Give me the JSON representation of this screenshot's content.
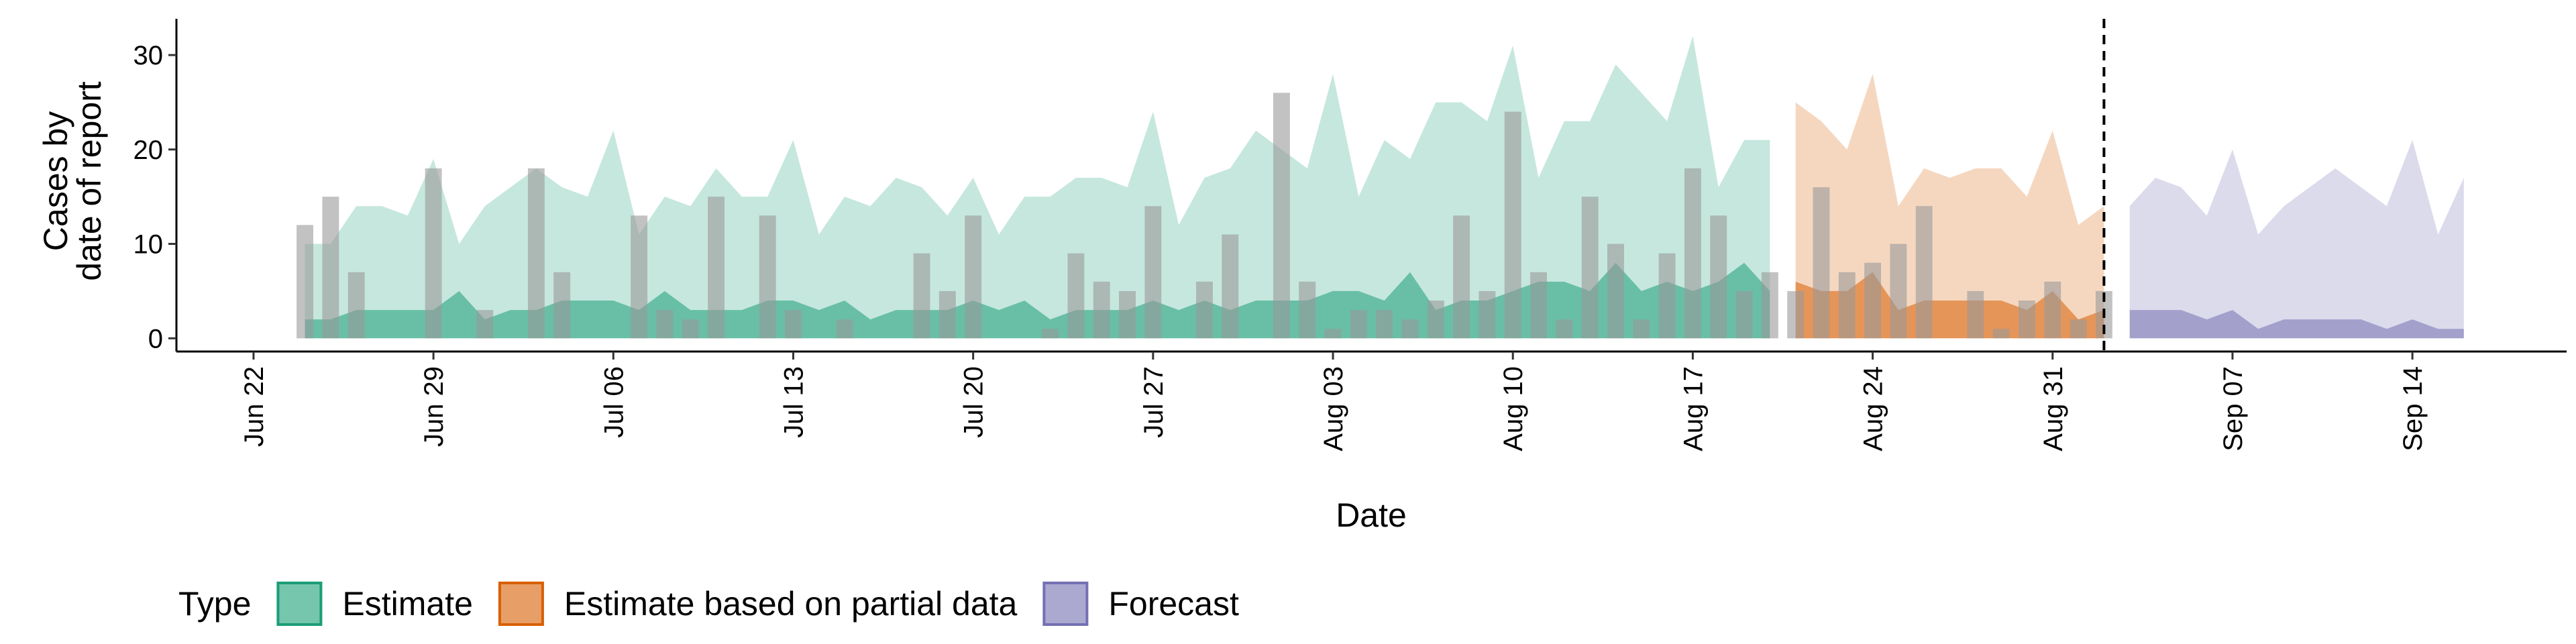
{
  "chart_data": {
    "type": "nowcast",
    "y_label": [
      "Cases by",
      "date of report"
    ],
    "x_label": "Date",
    "legend_title": "Type",
    "legend_position": "bottom",
    "xlim": [
      "Jun 19",
      "Sep 20"
    ],
    "ylim": [
      -1.4,
      33.7
    ],
    "xticks": [
      "Jun 22",
      "Jun 29",
      "Jul 06",
      "Jul 13",
      "Jul 20",
      "Jul 27",
      "Aug 03",
      "Aug 10",
      "Aug 17",
      "Aug 24",
      "Aug 31",
      "Sep 07",
      "Sep 14"
    ],
    "yticks": [
      0,
      10,
      20,
      30
    ],
    "vline": "Sep 02",
    "bars": {
      "color": "#999999",
      "x": [
        "Jun 24",
        "Jun 25",
        "Jun 26",
        "Jun 27",
        "Jun 28",
        "Jun 29",
        "Jun 30",
        "Jul 01",
        "Jul 02",
        "Jul 03",
        "Jul 04",
        "Jul 05",
        "Jul 06",
        "Jul 07",
        "Jul 08",
        "Jul 09",
        "Jul 10",
        "Jul 11",
        "Jul 12",
        "Jul 13",
        "Jul 14",
        "Jul 15",
        "Jul 16",
        "Jul 17",
        "Jul 18",
        "Jul 19",
        "Jul 20",
        "Jul 21",
        "Jul 22",
        "Jul 23",
        "Jul 24",
        "Jul 25",
        "Jul 26",
        "Jul 27",
        "Jul 28",
        "Jul 29",
        "Jul 30",
        "Jul 31",
        "Aug 01",
        "Aug 02",
        "Aug 03",
        "Aug 04",
        "Aug 05",
        "Aug 06",
        "Aug 07",
        "Aug 08",
        "Aug 09",
        "Aug 10",
        "Aug 11",
        "Aug 12",
        "Aug 13",
        "Aug 14",
        "Aug 15",
        "Aug 16",
        "Aug 17",
        "Aug 18",
        "Aug 19",
        "Aug 20",
        "Aug 21",
        "Aug 22",
        "Aug 23",
        "Aug 24",
        "Aug 25",
        "Aug 26",
        "Aug 27",
        "Aug 28",
        "Aug 29",
        "Aug 30",
        "Aug 31",
        "Sep 01",
        "Sep 02"
      ],
      "values": [
        12,
        15,
        7,
        0,
        0,
        18,
        0,
        3,
        0,
        18,
        7,
        0,
        0,
        13,
        3,
        2,
        15,
        0,
        13,
        3,
        0,
        2,
        0,
        0,
        9,
        5,
        13,
        0,
        0,
        1,
        9,
        6,
        5,
        14,
        0,
        6,
        11,
        0,
        26,
        6,
        1,
        3,
        3,
        2,
        4,
        13,
        5,
        24,
        7,
        2,
        15,
        10,
        2,
        9,
        18,
        13,
        5,
        7,
        5,
        16,
        7,
        8,
        10,
        14,
        0,
        5,
        1,
        4,
        6,
        2,
        5
      ]
    },
    "series": [
      {
        "name": "Estimate",
        "color": "#1b9e77",
        "x": [
          "Jun 24",
          "Jun 25",
          "Jun 26",
          "Jun 27",
          "Jun 28",
          "Jun 29",
          "Jun 30",
          "Jul 01",
          "Jul 02",
          "Jul 03",
          "Jul 04",
          "Jul 05",
          "Jul 06",
          "Jul 07",
          "Jul 08",
          "Jul 09",
          "Jul 10",
          "Jul 11",
          "Jul 12",
          "Jul 13",
          "Jul 14",
          "Jul 15",
          "Jul 16",
          "Jul 17",
          "Jul 18",
          "Jul 19",
          "Jul 20",
          "Jul 21",
          "Jul 22",
          "Jul 23",
          "Jul 24",
          "Jul 25",
          "Jul 26",
          "Jul 27",
          "Jul 28",
          "Jul 29",
          "Jul 30",
          "Jul 31",
          "Aug 01",
          "Aug 02",
          "Aug 03",
          "Aug 04",
          "Aug 05",
          "Aug 06",
          "Aug 07",
          "Aug 08",
          "Aug 09",
          "Aug 10",
          "Aug 11",
          "Aug 12",
          "Aug 13",
          "Aug 14",
          "Aug 15",
          "Aug 16",
          "Aug 17",
          "Aug 18",
          "Aug 19",
          "Aug 20"
        ],
        "upper": [
          10,
          10,
          14,
          14,
          13,
          19,
          10,
          14,
          16,
          18,
          16,
          15,
          22,
          11,
          15,
          14,
          18,
          15,
          15,
          21,
          11,
          15,
          14,
          17,
          16,
          13,
          17,
          11,
          15,
          15,
          17,
          17,
          16,
          24,
          12,
          17,
          18,
          22,
          20,
          18,
          28,
          15,
          21,
          19,
          25,
          25,
          23,
          31,
          17,
          23,
          23,
          29,
          26,
          23,
          32,
          16,
          21,
          21
        ],
        "inner": [
          2,
          2,
          3,
          3,
          3,
          3,
          5,
          2,
          3,
          3,
          4,
          4,
          4,
          3,
          5,
          3,
          3,
          3,
          4,
          4,
          3,
          4,
          2,
          3,
          3,
          3,
          4,
          3,
          4,
          2,
          3,
          3,
          3,
          4,
          3,
          4,
          3,
          4,
          4,
          4,
          5,
          5,
          4,
          7,
          3,
          4,
          4,
          5,
          6,
          6,
          5,
          8,
          5,
          6,
          5,
          6,
          8,
          5
        ]
      },
      {
        "name": "Estimate based on partial data",
        "color": "#d95f02",
        "x": [
          "Aug 21",
          "Aug 22",
          "Aug 23",
          "Aug 24",
          "Aug 25",
          "Aug 26",
          "Aug 27",
          "Aug 28",
          "Aug 29",
          "Aug 30",
          "Aug 31",
          "Sep 01",
          "Sep 02"
        ],
        "upper": [
          25,
          23,
          20,
          28,
          14,
          18,
          17,
          18,
          18,
          15,
          22,
          12,
          14
        ],
        "inner": [
          6,
          5,
          5,
          7,
          3,
          4,
          4,
          4,
          4,
          3,
          5,
          2,
          3
        ]
      },
      {
        "name": "Forecast",
        "color": "#7570b3",
        "x": [
          "Sep 03",
          "Sep 04",
          "Sep 05",
          "Sep 06",
          "Sep 07",
          "Sep 08",
          "Sep 09",
          "Sep 10",
          "Sep 11",
          "Sep 12",
          "Sep 13",
          "Sep 14",
          "Sep 15",
          "Sep 16"
        ],
        "upper": [
          14,
          17,
          16,
          13,
          20,
          11,
          14,
          16,
          18,
          16,
          14,
          21,
          11,
          17
        ],
        "inner": [
          3,
          3,
          3,
          2,
          3,
          1,
          2,
          2,
          2,
          2,
          1,
          2,
          1,
          1
        ]
      }
    ]
  }
}
